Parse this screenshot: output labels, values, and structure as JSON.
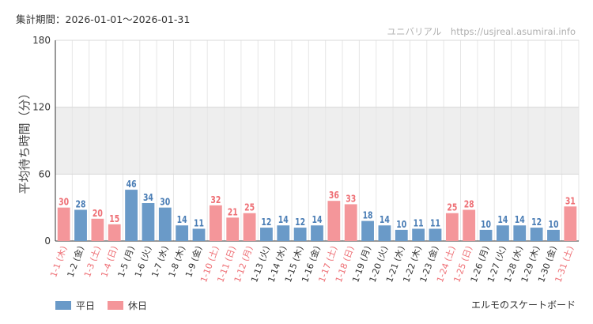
{
  "header": {
    "period": "集計期間：2026-01-01〜2026-01-31",
    "credit": "ユニバリアル　https://usjreal.asumirai.info"
  },
  "footer": {
    "attraction": "エルモのスケートボード"
  },
  "colors": {
    "weekday": "#6a9ac8",
    "holiday": "#f4969a",
    "weekday_text": "#4a7db5",
    "holiday_text": "#ee6f75",
    "band": "#eeeeee"
  },
  "chart_data": {
    "type": "bar",
    "ylabel": "平均待ち時間（分）",
    "ylim": [
      0,
      180
    ],
    "yticks": [
      0,
      60,
      120,
      180
    ],
    "shaded_band": [
      60,
      120
    ],
    "legend": [
      {
        "name": "平日",
        "key": "weekday"
      },
      {
        "name": "休日",
        "key": "holiday"
      }
    ],
    "categories": [
      "1-1 (木)",
      "1-2 (金)",
      "1-3 (土)",
      "1-4 (日)",
      "1-5 (月)",
      "1-6 (火)",
      "1-7 (水)",
      "1-8 (木)",
      "1-9 (金)",
      "1-10 (土)",
      "1-11 (日)",
      "1-12 (月)",
      "1-13 (火)",
      "1-14 (水)",
      "1-15 (木)",
      "1-16 (金)",
      "1-17 (土)",
      "1-18 (日)",
      "1-19 (月)",
      "1-20 (火)",
      "1-21 (水)",
      "1-22 (木)",
      "1-23 (金)",
      "1-24 (土)",
      "1-25 (日)",
      "1-26 (月)",
      "1-27 (火)",
      "1-28 (水)",
      "1-29 (木)",
      "1-30 (金)",
      "1-31 (土)"
    ],
    "values": [
      30,
      28,
      20,
      15,
      46,
      34,
      30,
      14,
      11,
      32,
      21,
      25,
      12,
      14,
      12,
      14,
      36,
      33,
      18,
      14,
      10,
      11,
      11,
      25,
      28,
      10,
      14,
      14,
      12,
      10,
      31
    ],
    "day_type": [
      "holiday",
      "weekday",
      "holiday",
      "holiday",
      "weekday",
      "weekday",
      "weekday",
      "weekday",
      "weekday",
      "holiday",
      "holiday",
      "holiday",
      "weekday",
      "weekday",
      "weekday",
      "weekday",
      "holiday",
      "holiday",
      "weekday",
      "weekday",
      "weekday",
      "weekday",
      "weekday",
      "holiday",
      "holiday",
      "weekday",
      "weekday",
      "weekday",
      "weekday",
      "weekday",
      "holiday"
    ]
  }
}
